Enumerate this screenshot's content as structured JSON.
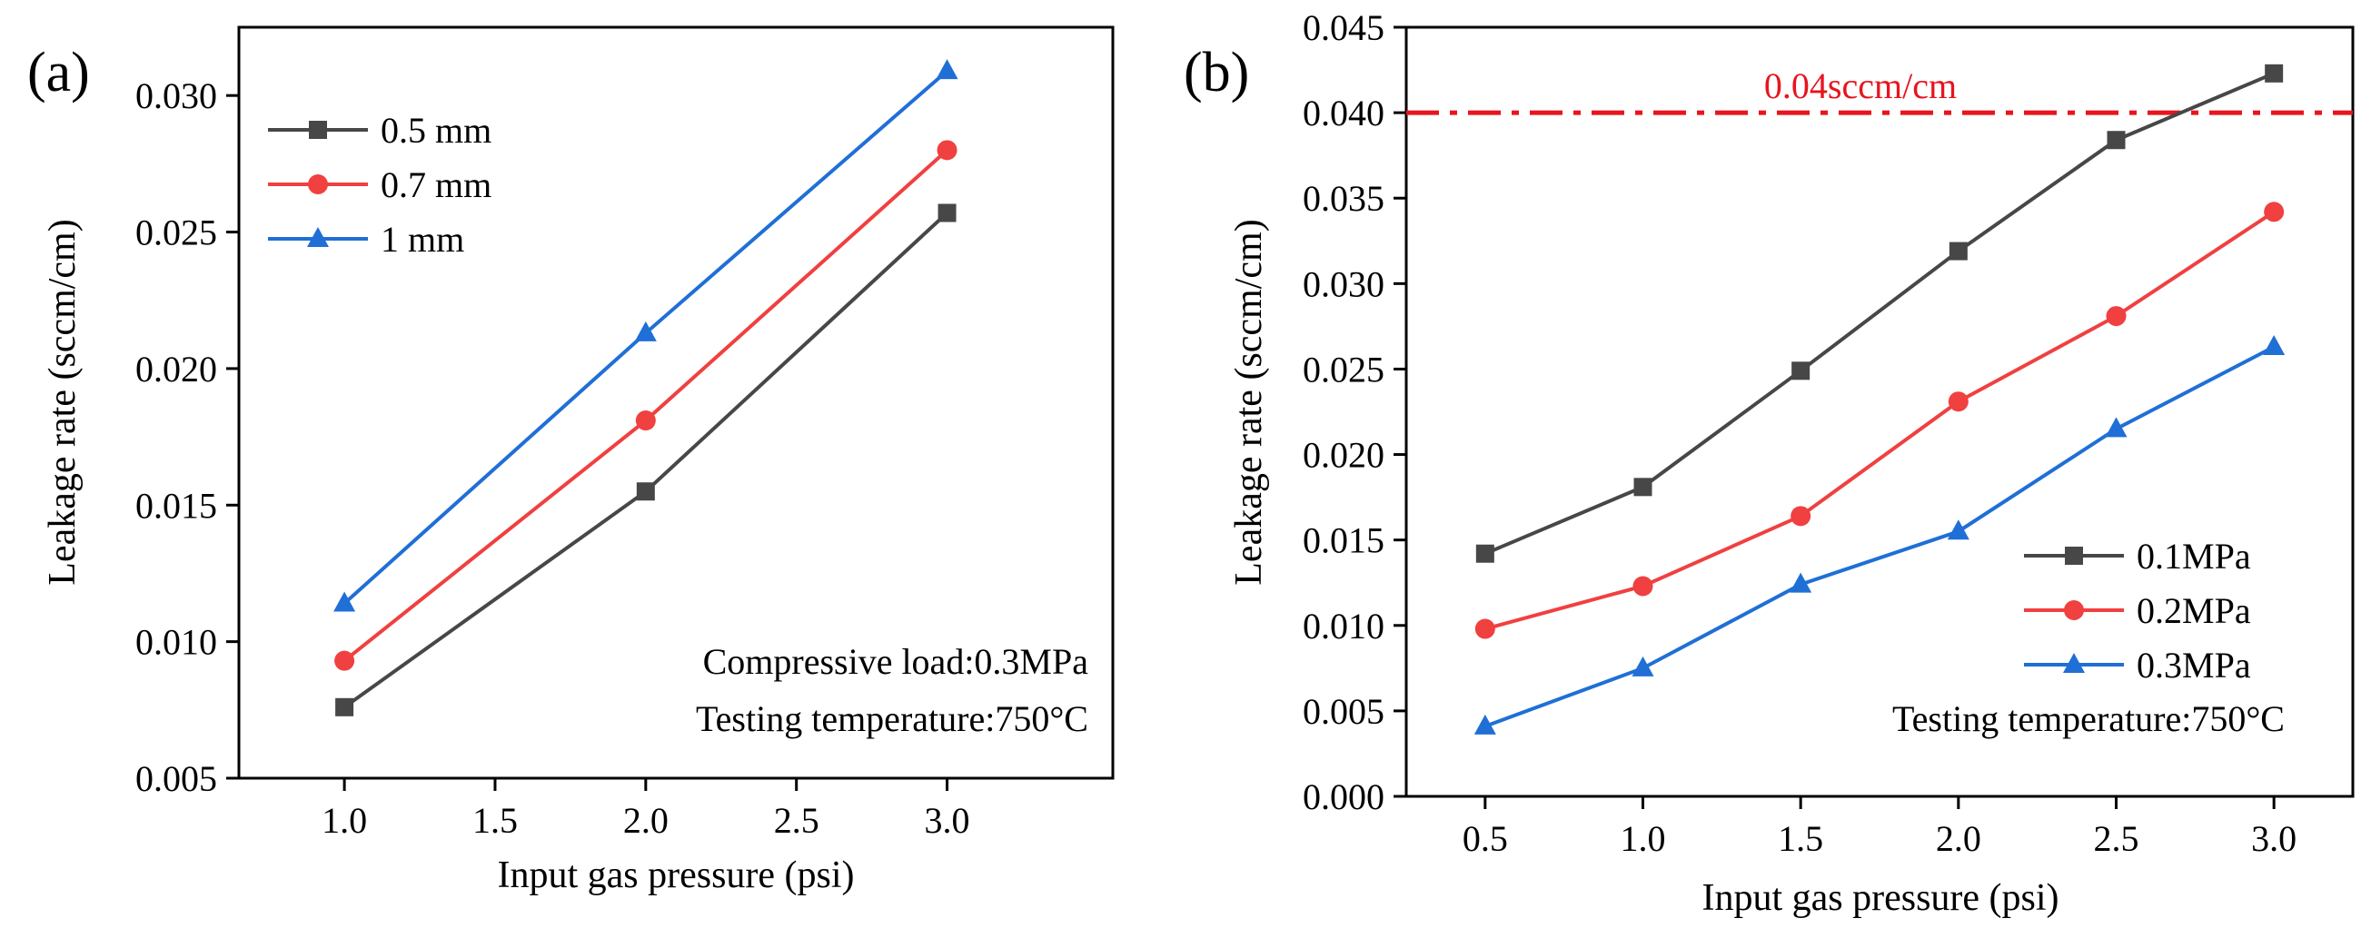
{
  "chart_data": [
    {
      "type": "line",
      "panel_label": "(a)",
      "xlabel": "Input gas pressure (psi)",
      "ylabel": "Leakage rate (sccm/cm)",
      "xlim": [
        0.65,
        3.55
      ],
      "ylim": [
        0.005,
        0.0325
      ],
      "x_ticks": [
        1.0,
        1.5,
        2.0,
        2.5,
        3.0
      ],
      "x_tick_labels": [
        "1.0",
        "1.5",
        "2.0",
        "2.5",
        "3.0"
      ],
      "y_ticks": [
        0.005,
        0.01,
        0.015,
        0.02,
        0.025,
        0.03
      ],
      "y_tick_labels": [
        "0.005",
        "0.010",
        "0.015",
        "0.020",
        "0.025",
        "0.030"
      ],
      "grid": false,
      "legend_position": "top-left",
      "series": [
        {
          "name": "0.5 mm",
          "marker": "square",
          "color": "#474747",
          "x": [
            1.0,
            2.0,
            3.0
          ],
          "values": [
            0.0076,
            0.0155,
            0.0257
          ]
        },
        {
          "name": "0.7 mm",
          "marker": "circle",
          "color": "#f04040",
          "x": [
            1.0,
            2.0,
            3.0
          ],
          "values": [
            0.0093,
            0.0181,
            0.028
          ]
        },
        {
          "name": "1 mm",
          "marker": "triangle",
          "color": "#1f6fd6",
          "x": [
            1.0,
            2.0,
            3.0
          ],
          "values": [
            0.0114,
            0.0213,
            0.0309
          ]
        }
      ],
      "annotations": [
        "Compressive load:0.3MPa",
        "Testing temperature:750°C"
      ]
    },
    {
      "type": "line",
      "panel_label": "(b)",
      "xlabel": "Input gas pressure (psi)",
      "ylabel": "Leakage rate (sccm/cm)",
      "xlim": [
        0.25,
        3.25
      ],
      "ylim": [
        0.0,
        0.045
      ],
      "x_ticks": [
        0.5,
        1.0,
        1.5,
        2.0,
        2.5,
        3.0
      ],
      "x_tick_labels": [
        "0.5",
        "1.0",
        "1.5",
        "2.0",
        "2.5",
        "3.0"
      ],
      "y_ticks": [
        0.0,
        0.005,
        0.01,
        0.015,
        0.02,
        0.025,
        0.03,
        0.035,
        0.04,
        0.045
      ],
      "y_tick_labels": [
        "0.000",
        "0.005",
        "0.010",
        "0.015",
        "0.020",
        "0.025",
        "0.030",
        "0.035",
        "0.040",
        "0.045"
      ],
      "grid": false,
      "legend_position": "bottom-right",
      "series": [
        {
          "name": "0.1MPa",
          "marker": "square",
          "color": "#474747",
          "x": [
            0.5,
            1.0,
            1.5,
            2.0,
            2.5,
            3.0
          ],
          "values": [
            0.0142,
            0.0181,
            0.0249,
            0.0319,
            0.0384,
            0.0423
          ]
        },
        {
          "name": "0.2MPa",
          "marker": "circle",
          "color": "#f04040",
          "x": [
            0.5,
            1.0,
            1.5,
            2.0,
            2.5,
            3.0
          ],
          "values": [
            0.0098,
            0.0123,
            0.0164,
            0.0231,
            0.0281,
            0.0342
          ]
        },
        {
          "name": "0.3MPa",
          "marker": "triangle",
          "color": "#1f6fd6",
          "x": [
            0.5,
            1.0,
            1.5,
            2.0,
            2.5,
            3.0
          ],
          "values": [
            0.0041,
            0.0075,
            0.0124,
            0.0155,
            0.0215,
            0.0263
          ]
        }
      ],
      "reference_line": {
        "y": 0.04,
        "label": "0.04sccm/cm",
        "color": "#e8141e",
        "style": "dash-dot"
      },
      "annotations": [
        "Testing temperature:750°C"
      ]
    }
  ]
}
